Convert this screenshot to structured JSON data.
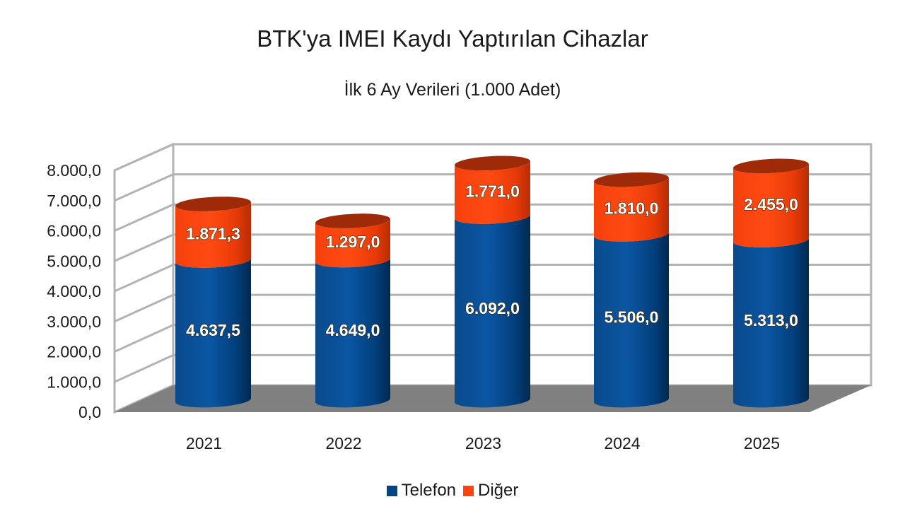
{
  "title": "BTK'ya IMEI Kaydı Yaptırılan Cihazlar",
  "subtitle": "İlk 6 Ay Verileri (1.000 Adet)",
  "colors": {
    "telefon": "#004586",
    "diger": "#ff420e",
    "floor": "#808080",
    "grid": "#b3b3b3"
  },
  "legend": {
    "items": [
      {
        "label": "Telefon",
        "color": "#004586"
      },
      {
        "label": "Diğer",
        "color": "#ff420e"
      }
    ]
  },
  "chart_data": {
    "type": "bar",
    "subtype": "stacked-3d-cylinder",
    "title": "BTK'ya IMEI Kaydı Yaptırılan Cihazlar",
    "subtitle": "İlk 6 Ay Verileri (1.000 Adet)",
    "xlabel": "",
    "ylabel": "",
    "categories": [
      "2021",
      "2022",
      "2023",
      "2024",
      "2025"
    ],
    "series": [
      {
        "name": "Telefon",
        "values": [
          4637.5,
          4649.0,
          6092.0,
          5506.0,
          5313.0
        ],
        "labels": [
          "4.637,5",
          "4.649,0",
          "6.092,0",
          "5.506,0",
          "5.313,0"
        ]
      },
      {
        "name": "Diğer",
        "values": [
          1871.3,
          1297.0,
          1771.0,
          1810.0,
          2455.0
        ],
        "labels": [
          "1.871,3",
          "1.297,0",
          "1.771,0",
          "1.810,0",
          "2.455,0"
        ]
      }
    ],
    "ylim": [
      0,
      8000
    ],
    "yticks": [
      0,
      1000,
      2000,
      3000,
      4000,
      5000,
      6000,
      7000,
      8000
    ],
    "ytick_labels": [
      "0,0",
      "1.000,0",
      "2.000,0",
      "3.000,0",
      "4.000,0",
      "5.000,0",
      "6.000,0",
      "7.000,0",
      "8.000,0"
    ],
    "grid": true,
    "legend_position": "bottom"
  }
}
